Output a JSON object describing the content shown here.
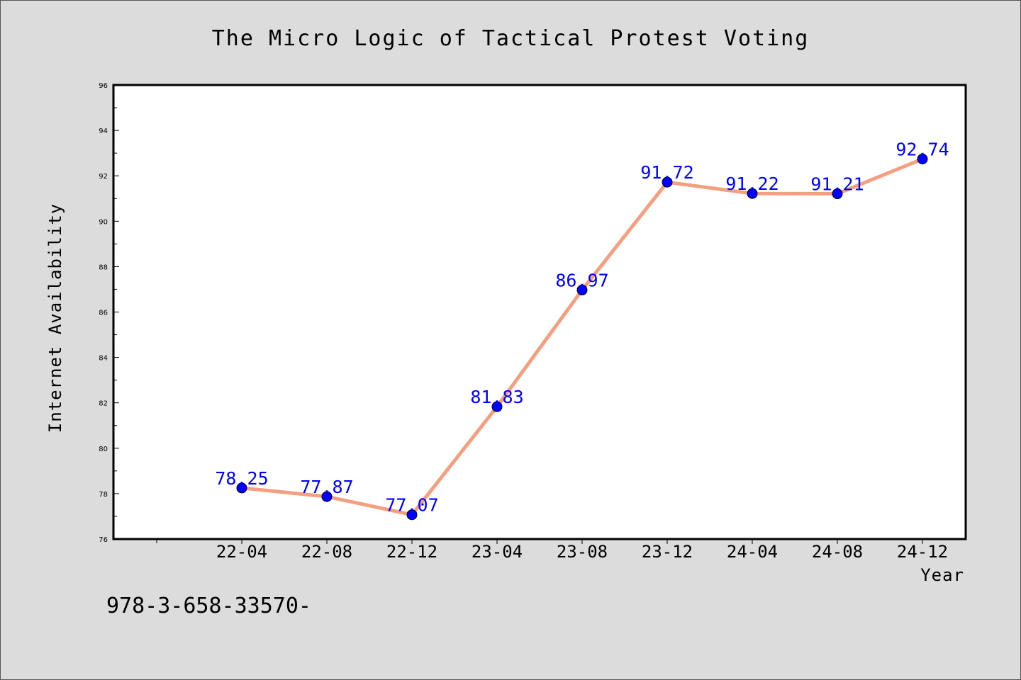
{
  "chart_data": {
    "type": "line",
    "title": "The Micro Logic of Tactical Protest Voting",
    "xlabel": "Year",
    "ylabel": "Internet Availability",
    "categories": [
      "22-04",
      "22-08",
      "22-12",
      "23-04",
      "23-08",
      "23-12",
      "24-04",
      "24-08",
      "24-12"
    ],
    "values": [
      78.25,
      77.87,
      77.07,
      81.83,
      86.97,
      91.72,
      91.22,
      91.21,
      92.74
    ],
    "data_labels": [
      "78.25",
      "77.87",
      "77.07",
      "81.83",
      "86.97",
      "91.72",
      "91.22",
      "91.21",
      "92.74"
    ],
    "ylim": [
      76,
      96
    ],
    "yticks": [
      76,
      78,
      80,
      82,
      84,
      86,
      88,
      90,
      92,
      94,
      96
    ],
    "grid": false,
    "legend": "none",
    "colors": {
      "line": "#f4a080",
      "marker": "#0000ff",
      "data_label": "#0000ff",
      "background": "#dcdcdc",
      "plot_background": "#ffffff"
    }
  },
  "footnote": "978-3-658-33570-"
}
